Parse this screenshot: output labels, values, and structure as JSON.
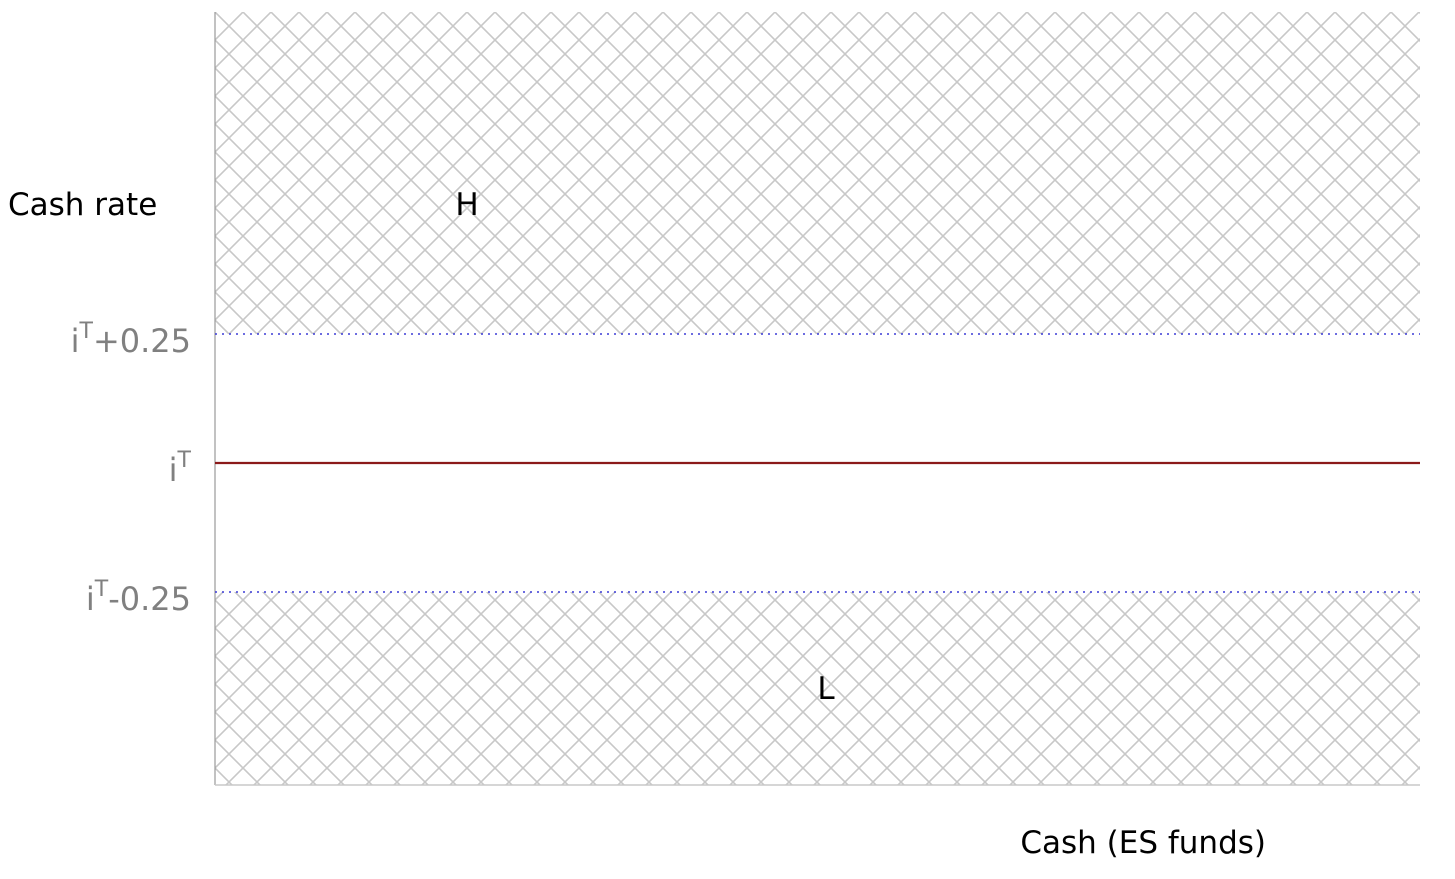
{
  "chart_data": {
    "type": "area",
    "title": "",
    "ylabel": "Cash rate",
    "xlabel": "Cash (ES funds)",
    "ylim": [
      -0.75,
      0.5
    ],
    "target_rate_line": {
      "label_base": "i",
      "label_sup": "T",
      "label_suffix": "",
      "value": 0,
      "color": "#8b1a1a"
    },
    "band_lines": [
      {
        "label_base": "i",
        "label_sup": "T",
        "label_suffix": "+0.25",
        "value": 0.25,
        "color": "#3b3bd6"
      },
      {
        "label_base": "i",
        "label_sup": "T",
        "label_suffix": "-0.25",
        "value": -0.25,
        "color": "#3b3bd6"
      }
    ],
    "regions": [
      {
        "label": "H",
        "from": 0.25,
        "to": 0.75,
        "fill": "crosshatch",
        "color": "#c8c8c8"
      },
      {
        "label": "L",
        "from": -0.625,
        "to": -0.25,
        "fill": "crosshatch",
        "color": "#c8c8c8"
      }
    ],
    "grid": false
  }
}
